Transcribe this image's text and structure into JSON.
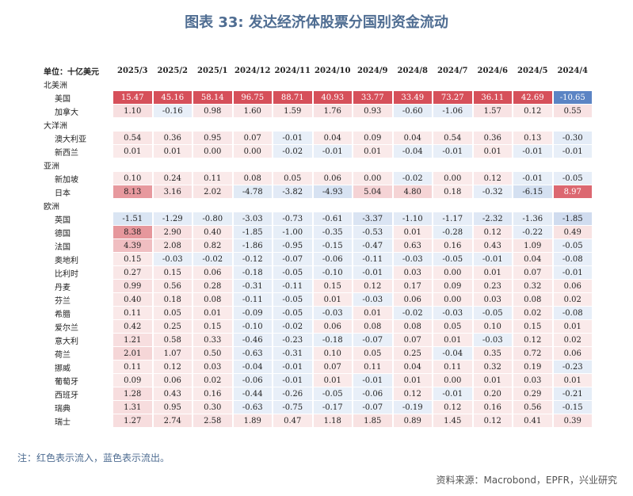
{
  "title": "图表 33: 发达经济体股票分国别资金流动",
  "table": {
    "header": [
      "单位：十亿美元",
      "2025/3",
      "2025/2",
      "2025/1",
      "2024/12",
      "2024/11",
      "2024/10",
      "2024/9",
      "2024/8",
      "2024/7",
      "2024/6",
      "2024/5",
      "2024/4"
    ],
    "groups": [
      {
        "name": "北美洲",
        "rows": [
          {
            "label": "美国",
            "values": [
              "15.47",
              "45.16",
              "58.14",
              "96.75",
              "88.71",
              "40.93",
              "33.77",
              "33.49",
              "73.27",
              "36.11",
              "42.69",
              "-10.65"
            ]
          },
          {
            "label": "加拿大",
            "values": [
              "1.10",
              "-0.16",
              "0.98",
              "1.60",
              "1.59",
              "1.76",
              "0.93",
              "-0.60",
              "-1.06",
              "1.57",
              "0.12",
              "0.55"
            ]
          }
        ]
      },
      {
        "name": "大洋洲",
        "rows": [
          {
            "label": "澳大利亚",
            "values": [
              "0.54",
              "0.36",
              "0.95",
              "0.07",
              "-0.01",
              "0.04",
              "0.09",
              "0.04",
              "0.54",
              "0.36",
              "0.13",
              "-0.30"
            ]
          },
          {
            "label": "新西兰",
            "values": [
              "0.01",
              "0.01",
              "0.00",
              "0.00",
              "-0.02",
              "-0.01",
              "0.01",
              "-0.04",
              "-0.01",
              "0.01",
              "-0.01",
              "-0.01"
            ]
          }
        ]
      },
      {
        "name": "亚洲",
        "rows": [
          {
            "label": "新加坡",
            "values": [
              "0.10",
              "0.24",
              "0.11",
              "0.08",
              "0.05",
              "0.06",
              "0.00",
              "-0.02",
              "0.00",
              "0.12",
              "-0.01",
              "-0.05"
            ]
          },
          {
            "label": "日本",
            "values": [
              "8.13",
              "3.16",
              "2.02",
              "-4.78",
              "-3.82",
              "-4.93",
              "5.04",
              "4.80",
              "0.18",
              "-0.32",
              "-6.15",
              "8.97"
            ]
          }
        ]
      },
      {
        "name": "欧洲",
        "rows": [
          {
            "label": "英国",
            "values": [
              "-1.51",
              "-1.29",
              "-0.80",
              "-3.03",
              "-0.73",
              "-0.61",
              "-3.37",
              "-1.10",
              "-1.17",
              "-2.32",
              "-1.36",
              "-1.85"
            ]
          },
          {
            "label": "德国",
            "values": [
              "8.38",
              "2.90",
              "0.40",
              "-1.85",
              "-1.00",
              "-0.35",
              "-0.53",
              "0.01",
              "-0.28",
              "0.12",
              "-0.22",
              "0.49"
            ]
          },
          {
            "label": "法国",
            "values": [
              "4.39",
              "2.08",
              "0.82",
              "-1.86",
              "-0.95",
              "-0.15",
              "-0.47",
              "0.63",
              "0.16",
              "0.43",
              "1.09",
              "-0.05"
            ]
          },
          {
            "label": "奥地利",
            "values": [
              "0.15",
              "-0.03",
              "-0.02",
              "-0.12",
              "-0.07",
              "-0.06",
              "-0.11",
              "-0.03",
              "-0.05",
              "-0.01",
              "0.04",
              "-0.08"
            ]
          },
          {
            "label": "比利时",
            "values": [
              "0.27",
              "0.15",
              "0.06",
              "-0.18",
              "-0.05",
              "-0.10",
              "-0.01",
              "0.03",
              "0.00",
              "0.01",
              "0.07",
              "-0.01"
            ]
          },
          {
            "label": "丹麦",
            "values": [
              "0.99",
              "0.56",
              "0.28",
              "-0.31",
              "-0.11",
              "0.15",
              "0.12",
              "0.17",
              "0.09",
              "0.23",
              "0.32",
              "0.06"
            ]
          },
          {
            "label": "芬兰",
            "values": [
              "0.40",
              "0.18",
              "0.08",
              "-0.11",
              "-0.05",
              "0.01",
              "-0.03",
              "0.06",
              "0.00",
              "0.03",
              "0.08",
              "0.02"
            ]
          },
          {
            "label": "希腊",
            "values": [
              "0.11",
              "0.05",
              "0.01",
              "-0.09",
              "-0.05",
              "-0.03",
              "0.01",
              "-0.02",
              "-0.03",
              "-0.05",
              "0.02",
              "-0.08"
            ]
          },
          {
            "label": "爱尔兰",
            "values": [
              "0.42",
              "0.25",
              "0.15",
              "-0.10",
              "-0.02",
              "0.06",
              "0.08",
              "0.08",
              "0.05",
              "0.10",
              "0.15",
              "0.01"
            ]
          },
          {
            "label": "意大利",
            "values": [
              "1.21",
              "0.58",
              "0.33",
              "-0.46",
              "-0.23",
              "-0.18",
              "-0.07",
              "0.07",
              "0.01",
              "-0.03",
              "0.12",
              "0.02"
            ]
          },
          {
            "label": "荷兰",
            "values": [
              "2.01",
              "1.07",
              "0.50",
              "-0.63",
              "-0.31",
              "0.10",
              "0.05",
              "0.25",
              "-0.04",
              "0.35",
              "0.72",
              "0.06"
            ]
          },
          {
            "label": "挪威",
            "values": [
              "0.11",
              "0.12",
              "0.03",
              "-0.04",
              "-0.01",
              "0.07",
              "0.11",
              "0.04",
              "0.11",
              "0.32",
              "0.19",
              "-0.23"
            ]
          },
          {
            "label": "葡萄牙",
            "values": [
              "0.09",
              "0.06",
              "0.02",
              "-0.06",
              "-0.01",
              "0.01",
              "-0.01",
              "0.01",
              "0.00",
              "0.01",
              "0.03",
              "0.01"
            ]
          },
          {
            "label": "西班牙",
            "values": [
              "1.28",
              "0.43",
              "0.16",
              "-0.44",
              "-0.26",
              "-0.05",
              "-0.06",
              "0.12",
              "-0.01",
              "0.20",
              "0.29",
              "-0.21"
            ]
          },
          {
            "label": "瑞典",
            "values": [
              "1.31",
              "0.95",
              "0.30",
              "-0.63",
              "-0.75",
              "-0.17",
              "-0.07",
              "-0.19",
              "0.12",
              "0.16",
              "0.56",
              "-0.15"
            ]
          },
          {
            "label": "瑞士",
            "values": [
              "1.27",
              "2.74",
              "2.58",
              "1.89",
              "0.47",
              "1.18",
              "1.85",
              "0.89",
              "1.45",
              "0.12",
              "0.41",
              "0.39"
            ]
          }
        ]
      }
    ]
  },
  "note": "注：红色表示流入，蓝色表示流出。",
  "source": "资料来源：Macrobond，EPFR，兴业研究"
}
